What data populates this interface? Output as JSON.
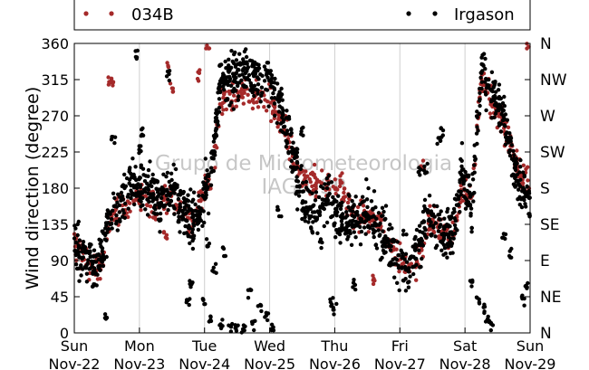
{
  "chart_data": {
    "type": "scatter",
    "ylabel": "Wind direction (degree)",
    "ylim": [
      0,
      360
    ],
    "y_ticks": [
      0,
      45,
      90,
      135,
      180,
      225,
      270,
      315,
      360
    ],
    "y_ticks_right": [
      "N",
      "NE",
      "E",
      "SE",
      "S",
      "SW",
      "W",
      "NW",
      "N"
    ],
    "xlim": [
      "2015-11-22",
      "2015-11-29"
    ],
    "x_ticks": [
      {
        "day": "Sun",
        "date": "Nov-22"
      },
      {
        "day": "Mon",
        "date": "Nov-23"
      },
      {
        "day": "Tue",
        "date": "Nov-24"
      },
      {
        "day": "Wed",
        "date": "Nov-25"
      },
      {
        "day": "Thu",
        "date": "Nov-26"
      },
      {
        "day": "Fri",
        "date": "Nov-27"
      },
      {
        "day": "Sat",
        "date": "Nov-28"
      },
      {
        "day": "Sun",
        "date": "Nov-29"
      }
    ],
    "grid": "vertical",
    "legend": "top",
    "watermark": [
      "Grupo de Micrometeorologia",
      "IAG/USP"
    ],
    "series": [
      {
        "name": "034B",
        "color": "#a52a2a",
        "x_unit": "days since Nov-22 00:00",
        "trend": [
          [
            0.0,
            118
          ],
          [
            0.1,
            95
          ],
          [
            0.25,
            85
          ],
          [
            0.35,
            80
          ],
          [
            0.45,
            100
          ],
          [
            0.55,
            140
          ],
          [
            0.7,
            150
          ],
          [
            0.85,
            160
          ],
          [
            1.0,
            165
          ],
          [
            1.15,
            160
          ],
          [
            1.3,
            150
          ],
          [
            1.45,
            170
          ],
          [
            1.55,
            165
          ],
          [
            1.7,
            140
          ],
          [
            1.85,
            140
          ],
          [
            1.95,
            175
          ],
          [
            2.1,
            175
          ],
          [
            2.25,
            290
          ],
          [
            2.4,
            295
          ],
          [
            2.6,
            300
          ],
          [
            2.8,
            290
          ],
          [
            3.0,
            285
          ],
          [
            3.15,
            270
          ],
          [
            3.3,
            235
          ],
          [
            3.5,
            190
          ],
          [
            3.7,
            185
          ],
          [
            3.9,
            185
          ],
          [
            4.1,
            180
          ],
          [
            4.3,
            150
          ],
          [
            4.5,
            140
          ],
          [
            4.7,
            135
          ],
          [
            4.9,
            100
          ],
          [
            5.1,
            85
          ],
          [
            5.25,
            90
          ],
          [
            5.45,
            140
          ],
          [
            5.6,
            130
          ],
          [
            5.8,
            120
          ],
          [
            5.95,
            180
          ],
          [
            6.1,
            170
          ],
          [
            6.25,
            320
          ],
          [
            6.4,
            290
          ],
          [
            6.6,
            260
          ],
          [
            6.75,
            220
          ],
          [
            6.85,
            190
          ],
          [
            7.0,
            190
          ]
        ],
        "scatter": 14,
        "extras": [
          [
            0.55,
            315
          ],
          [
            0.57,
            310
          ],
          [
            1.45,
            330
          ],
          [
            1.49,
            305
          ],
          [
            2.05,
            360
          ],
          [
            1.4,
            120
          ],
          [
            1.9,
            320
          ],
          [
            4.6,
            65
          ],
          [
            5.35,
            210
          ],
          [
            6.95,
            360
          ]
        ]
      },
      {
        "name": "Irgason",
        "color": "#000000",
        "x_unit": "days since Nov-22 00:00",
        "trend": [
          [
            0.0,
            120
          ],
          [
            0.1,
            95
          ],
          [
            0.25,
            85
          ],
          [
            0.35,
            75
          ],
          [
            0.45,
            110
          ],
          [
            0.55,
            145
          ],
          [
            0.7,
            160
          ],
          [
            0.85,
            185
          ],
          [
            1.0,
            180
          ],
          [
            1.15,
            175
          ],
          [
            1.3,
            165
          ],
          [
            1.45,
            170
          ],
          [
            1.55,
            180
          ],
          [
            1.7,
            150
          ],
          [
            1.85,
            140
          ],
          [
            1.95,
            150
          ],
          [
            2.1,
            200
          ],
          [
            2.25,
            320
          ],
          [
            2.4,
            315
          ],
          [
            2.6,
            330
          ],
          [
            2.8,
            320
          ],
          [
            3.0,
            315
          ],
          [
            3.15,
            280
          ],
          [
            3.3,
            240
          ],
          [
            3.5,
            160
          ],
          [
            3.7,
            150
          ],
          [
            3.9,
            170
          ],
          [
            4.1,
            140
          ],
          [
            4.3,
            140
          ],
          [
            4.5,
            150
          ],
          [
            4.7,
            130
          ],
          [
            4.9,
            95
          ],
          [
            5.1,
            80
          ],
          [
            5.25,
            100
          ],
          [
            5.45,
            150
          ],
          [
            5.6,
            130
          ],
          [
            5.8,
            120
          ],
          [
            5.95,
            200
          ],
          [
            6.1,
            150
          ],
          [
            6.25,
            330
          ],
          [
            6.4,
            300
          ],
          [
            6.6,
            270
          ],
          [
            6.75,
            210
          ],
          [
            6.85,
            180
          ],
          [
            7.0,
            160
          ]
        ],
        "scatter": 22,
        "extras": [
          [
            1.0,
            230
          ],
          [
            1.05,
            250
          ],
          [
            0.5,
            20
          ],
          [
            0.6,
            240
          ],
          [
            0.95,
            345
          ],
          [
            1.45,
            320
          ],
          [
            1.75,
            40
          ],
          [
            1.8,
            60
          ],
          [
            2.0,
            40
          ],
          [
            2.1,
            20
          ],
          [
            2.25,
            10
          ],
          [
            2.4,
            5
          ],
          [
            2.5,
            8
          ],
          [
            2.6,
            3
          ],
          [
            2.75,
            10
          ],
          [
            2.85,
            30
          ],
          [
            2.95,
            20
          ],
          [
            3.05,
            10
          ],
          [
            2.7,
            50
          ],
          [
            2.3,
            100
          ],
          [
            2.15,
            80
          ],
          [
            2.05,
            110
          ],
          [
            3.4,
            230
          ],
          [
            3.5,
            250
          ],
          [
            3.8,
            110
          ],
          [
            3.95,
            40
          ],
          [
            4.0,
            30
          ],
          [
            4.3,
            60
          ],
          [
            5.3,
            200
          ],
          [
            5.4,
            205
          ],
          [
            5.6,
            240
          ],
          [
            5.65,
            250
          ],
          [
            6.1,
            60
          ],
          [
            6.2,
            40
          ],
          [
            6.3,
            30
          ],
          [
            6.35,
            20
          ],
          [
            6.4,
            10
          ],
          [
            6.05,
            190
          ],
          [
            6.9,
            40
          ],
          [
            6.95,
            60
          ],
          [
            6.6,
            120
          ],
          [
            6.7,
            100
          ],
          [
            1.95,
            150
          ],
          [
            3.15,
            150
          ]
        ]
      }
    ]
  }
}
